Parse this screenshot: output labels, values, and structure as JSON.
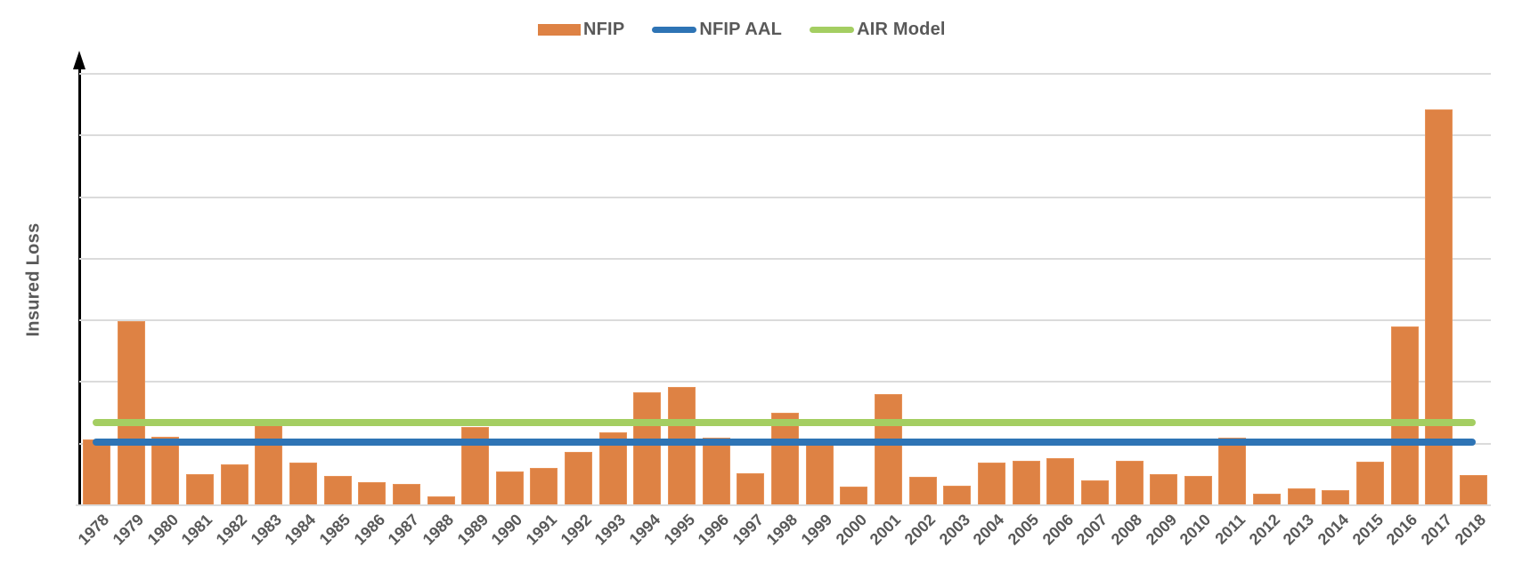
{
  "colors": {
    "bar_orange": "#DE8244",
    "nfip_aal_blue": "#2E74B5",
    "air_model_green": "#A4CE62",
    "text_gray": "#595959",
    "gridline_gray": "#DBDBDB",
    "axis_black": "#000000"
  },
  "legend": {
    "position": "top-center"
  },
  "chart_data": {
    "type": "bar",
    "title": "",
    "xlabel": "",
    "ylabel": "Insured Loss",
    "y_axis_numeric_labels_visible": false,
    "y_units_note": "y axis unlabeled; values expressed in gridline units (1 unit = one horizontal gridline interval)",
    "grid": "horizontal",
    "y_gridline_count": 7,
    "ylim": [
      0,
      7.3
    ],
    "legend_position": "top-center",
    "categories": [
      "1978",
      "1979",
      "1980",
      "1981",
      "1982",
      "1983",
      "1984",
      "1985",
      "1986",
      "1987",
      "1988",
      "1989",
      "1990",
      "1991",
      "1992",
      "1993",
      "1994",
      "1995",
      "1996",
      "1997",
      "1998",
      "1999",
      "2000",
      "2001",
      "2002",
      "2003",
      "2004",
      "2005",
      "2006",
      "2007",
      "2008",
      "2009",
      "2010",
      "2011",
      "2012",
      "2013",
      "2014",
      "2015",
      "2016",
      "2017",
      "2018"
    ],
    "series": [
      {
        "name": "NFIP",
        "kind": "bar",
        "color": "#DE8244",
        "values": [
          1.07,
          2.99,
          1.11,
          0.51,
          0.66,
          1.3,
          0.69,
          0.48,
          0.38,
          0.35,
          0.14,
          1.27,
          0.55,
          0.61,
          0.87,
          1.18,
          1.83,
          1.92,
          1.1,
          0.52,
          1.5,
          1.0,
          0.3,
          1.8,
          0.46,
          0.32,
          0.69,
          0.72,
          0.76,
          0.4,
          0.72,
          0.51,
          0.48,
          1.1,
          0.19,
          0.27,
          0.25,
          0.71,
          2.9,
          6.42,
          0.49
        ]
      },
      {
        "name": "NFIP AAL",
        "kind": "hline",
        "color": "#2E74B5",
        "value": 1.02
      },
      {
        "name": "AIR Model",
        "kind": "hline",
        "color": "#A4CE62",
        "value": 1.34
      }
    ]
  }
}
